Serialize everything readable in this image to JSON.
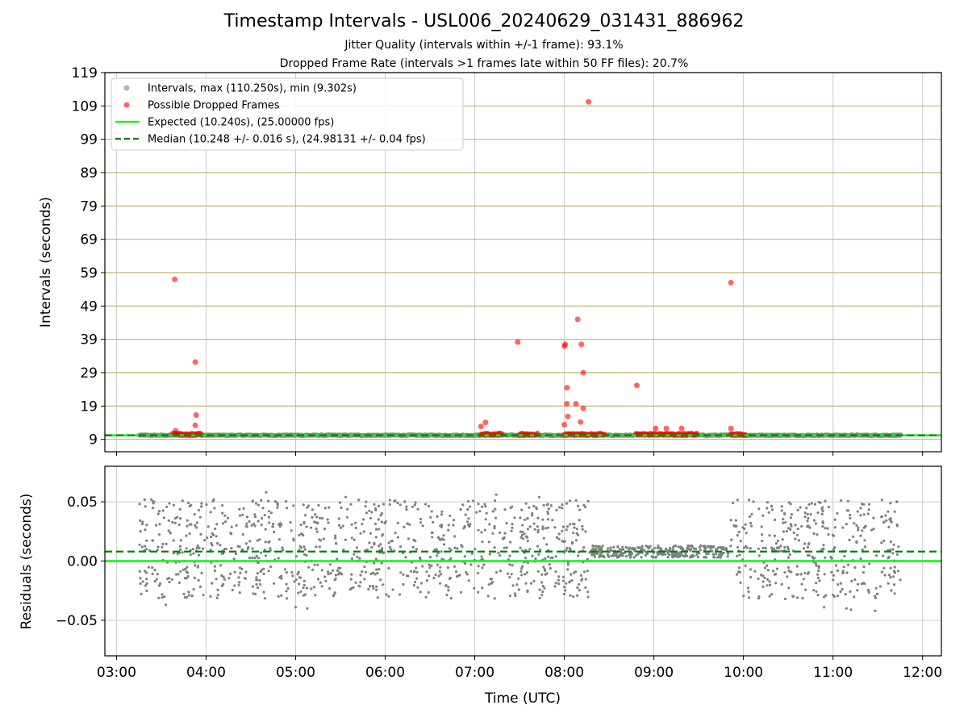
{
  "title": "Timestamp Intervals - USL006_20240629_031431_886962",
  "subtitle_1": "Jitter Quality (intervals within +/-1 frame): 93.1%",
  "subtitle_2": "Dropped Frame Rate (intervals >1 frames late within 50 FF files): 20.7%",
  "colors": {
    "intervals": "#808080",
    "dropped": "#ff0000",
    "expected": "#00ff00",
    "median": "#008000",
    "hgrid": "#c8b46e",
    "vgrid": "#cccccc"
  },
  "chart_data": [
    {
      "type": "scatter",
      "panel": "top",
      "ylabel": "Intervals (seconds)",
      "xlim_hours": [
        2.87,
        12.21
      ],
      "ylim": [
        5.3,
        119
      ],
      "yticks": [
        9,
        19,
        29,
        39,
        49,
        59,
        69,
        79,
        89,
        99,
        109,
        119
      ],
      "legend_position": "upper-left",
      "legend": [
        {
          "label": "Intervals, max (110.250s), min (9.302s)",
          "kind": "dot",
          "color": "#808080"
        },
        {
          "label": "Possible Dropped Frames",
          "kind": "dot",
          "color": "#ff0000"
        },
        {
          "label": "Expected (10.240s), (25.00000 fps)",
          "kind": "solid",
          "color": "#00ff00"
        },
        {
          "label": "Median (10.248 +/- 0.016 s), (24.98131 +/- 0.04 fps)",
          "kind": "dashed",
          "color": "#008000"
        }
      ],
      "expected": 10.24,
      "median": 10.248,
      "interval_span_hours": [
        3.25,
        11.76
      ],
      "dropped_clusters": [
        {
          "from_hours": 3.63,
          "to_hours": 3.95
        },
        {
          "from_hours": 7.07,
          "to_hours": 7.3
        },
        {
          "from_hours": 7.5,
          "to_hours": 7.7
        },
        {
          "from_hours": 8.0,
          "to_hours": 8.45
        },
        {
          "from_hours": 8.8,
          "to_hours": 9.48
        },
        {
          "from_hours": 9.86,
          "to_hours": 10.02
        }
      ],
      "dropped_points": [
        {
          "x": 3.65,
          "y": 57
        },
        {
          "x": 3.88,
          "y": 32.2
        },
        {
          "x": 3.89,
          "y": 16.3
        },
        {
          "x": 3.88,
          "y": 13.2
        },
        {
          "x": 3.66,
          "y": 11.6
        },
        {
          "x": 7.07,
          "y": 12.9
        },
        {
          "x": 7.12,
          "y": 14.1
        },
        {
          "x": 7.48,
          "y": 38.2
        },
        {
          "x": 8.0,
          "y": 37
        },
        {
          "x": 8.01,
          "y": 37.5
        },
        {
          "x": 8.15,
          "y": 45
        },
        {
          "x": 8.19,
          "y": 37.5
        },
        {
          "x": 8.03,
          "y": 24.5
        },
        {
          "x": 8.21,
          "y": 29
        },
        {
          "x": 8.03,
          "y": 19.7
        },
        {
          "x": 8.13,
          "y": 19.7
        },
        {
          "x": 8.21,
          "y": 18.3
        },
        {
          "x": 8.04,
          "y": 15.9
        },
        {
          "x": 8.18,
          "y": 14.2
        },
        {
          "x": 8.0,
          "y": 13.4
        },
        {
          "x": 8.27,
          "y": 110.25
        },
        {
          "x": 8.81,
          "y": 25.2
        },
        {
          "x": 9.02,
          "y": 12.3
        },
        {
          "x": 9.14,
          "y": 12.3
        },
        {
          "x": 9.31,
          "y": 12.3
        },
        {
          "x": 9.86,
          "y": 56
        },
        {
          "x": 9.86,
          "y": 12.3
        }
      ]
    },
    {
      "type": "scatter",
      "panel": "bottom",
      "xlabel": "Time (UTC)",
      "ylabel": "Residuals (seconds)",
      "xlim_hours": [
        2.87,
        12.21
      ],
      "ylim": [
        -0.08,
        0.08
      ],
      "yticks": [
        0.05,
        0.0,
        -0.05
      ],
      "ytick_labels": [
        "0.05",
        "0.00",
        "−0.05"
      ],
      "xticks_hours": [
        3,
        4,
        5,
        6,
        7,
        8,
        9,
        10,
        11,
        12
      ],
      "xtick_labels": [
        "03:00",
        "04:00",
        "05:00",
        "06:00",
        "07:00",
        "08:00",
        "09:00",
        "10:00",
        "11:00",
        "12:00"
      ],
      "expected_residual": 0.0,
      "median_residual": 0.008,
      "segments": [
        {
          "from_hours": 3.25,
          "to_hours": 8.28,
          "levels": [
            -0.02,
            0.0,
            0.02,
            0.04
          ],
          "spread": 0.012
        },
        {
          "from_hours": 8.28,
          "to_hours": 9.85,
          "levels": [
            0.008
          ],
          "spread": 0.005
        },
        {
          "from_hours": 9.85,
          "to_hours": 11.76,
          "levels": [
            -0.02,
            0.0,
            0.02,
            0.04
          ],
          "spread": 0.012
        }
      ],
      "outliers": [
        {
          "x": 3.55,
          "y": -0.037
        },
        {
          "x": 5.0,
          "y": -0.039
        },
        {
          "x": 5.13,
          "y": -0.04
        },
        {
          "x": 10.9,
          "y": -0.039
        },
        {
          "x": 11.15,
          "y": -0.04
        },
        {
          "x": 11.2,
          "y": -0.041
        },
        {
          "x": 11.47,
          "y": -0.042
        },
        {
          "x": 4.67,
          "y": 0.058
        },
        {
          "x": 7.24,
          "y": 0.056
        },
        {
          "x": 5.56,
          "y": 0.054
        },
        {
          "x": 7.72,
          "y": 0.054
        }
      ]
    }
  ]
}
